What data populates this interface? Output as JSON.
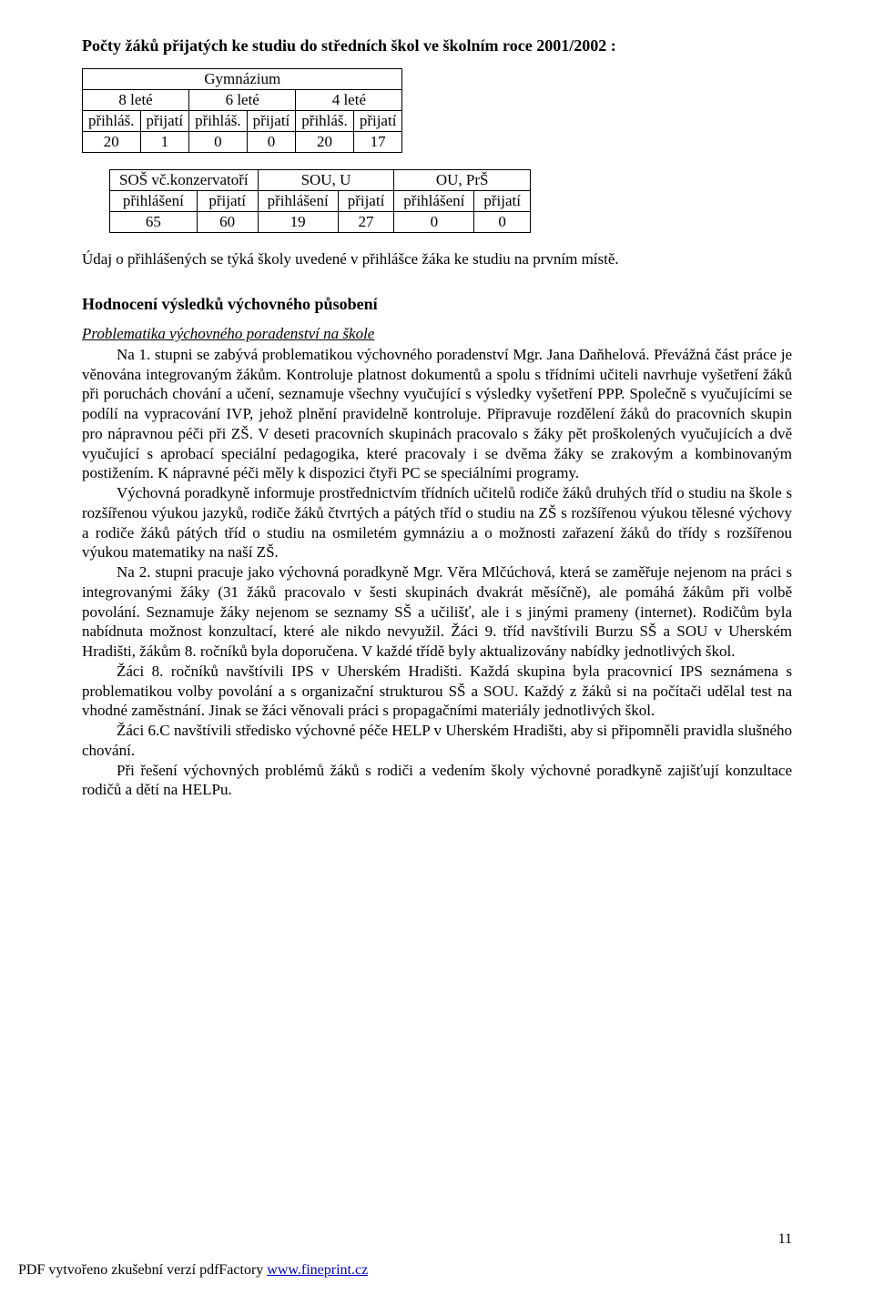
{
  "heading": "Počty žáků přijatých ke studiu do středních škol ve školním roce 2001/2002 :",
  "table1": {
    "topHeader": "Gymnázium",
    "groupHeaders": [
      "8 leté",
      "6 leté",
      "4 leté"
    ],
    "subHeaders": [
      "přihláš.",
      "přijatí",
      "přihláš.",
      "přijatí",
      "přihláš.",
      "přijatí"
    ],
    "values": [
      "20",
      "1",
      "0",
      "0",
      "20",
      "17"
    ]
  },
  "table2": {
    "headers": [
      "SOŠ vč.konzervatoří",
      "SOU, U",
      "OU, PrŠ"
    ],
    "subHeaders": [
      "přihlášení",
      "přijatí",
      "přihlášení",
      "přijatí",
      "přihlášení",
      "přijatí"
    ],
    "values": [
      "65",
      "60",
      "19",
      "27",
      "0",
      "0"
    ]
  },
  "note": "Údaj o přihlášených se týká školy uvedené v přihlášce žáka ke studiu na prvním místě.",
  "sectionTitle": "Hodnocení  výsledků výchovného působení",
  "subheading": "Problematika výchovného poradenství na škole",
  "body": {
    "p1": "Na 1. stupni se zabývá problematikou výchovného poradenství Mgr. Jana Daňhelová. Převážná část práce je věnována integrovaným žákům. Kontroluje platnost dokumentů a spolu s třídními učiteli navrhuje vyšetření žáků při poruchách chování a učení, seznamuje všechny vyučující s výsledky vyšetření PPP. Společně s vyučujícími se podílí na vypracování IVP, jehož plnění pravidelně kontroluje. Připravuje rozdělení žáků do pracovních skupin pro nápravnou péči při ZŠ. V deseti pracovních skupinách pracovalo s žáky pět proškolených vyučujících a dvě vyučující s aprobací speciální pedagogika, které pracovaly i se dvěma žáky se zrakovým a kombinovaným postižením. K nápravné péči měly k dispozici čtyři PC se speciálními programy.",
    "p2": "Výchovná poradkyně informuje prostřednictvím třídních učitelů rodiče žáků druhých tříd o studiu na škole s rozšířenou výukou jazyků, rodiče žáků čtvrtých a pátých tříd o studiu na ZŠ s rozšířenou výukou tělesné výchovy a rodiče žáků pátých tříd o studiu na osmiletém gymnáziu a o možnosti zařazení žáků do třídy s rozšířenou výukou matematiky na naší ZŠ.",
    "p3": "Na 2. stupni pracuje jako výchovná poradkyně Mgr. Věra Mlčúchová, která se zaměřuje nejenom na práci s integrovanými žáky (31 žáků pracovalo v šesti skupinách dvakrát měsíčně), ale pomáhá žákům při volbě povolání. Seznamuje žáky  nejenom se seznamy SŠ a učilišť, ale i s jinými prameny (internet).  Rodičům byla nabídnuta možnost konzultací, které ale nikdo nevyužil. Žáci 9. tříd navštívili Burzu SŠ a SOU v Uherském Hradišti, žákům 8. ročníků byla doporučena. V každé třídě byly aktualizovány nabídky jednotlivých škol.",
    "p4": "Žáci 8. ročníků navštívili  IPS v Uherském Hradišti. Každá skupina byla pracovnicí IPS seznámena s problematikou volby povolání a s organizační strukturou SŠ a SOU. Každý z žáků si na počítači udělal test na vhodné zaměstnání. Jinak se žáci věnovali práci s propagačními materiály jednotlivých škol.",
    "p5": "Žáci 6.C navštívili středisko výchovné péče HELP v Uherském Hradišti, aby si připomněli pravidla slušného chování.",
    "p6": "Při řešení výchovných problémů žáků s rodiči a vedením školy výchovné poradkyně zajišťují konzultace rodičů a dětí na  HELPu."
  },
  "pageNumber": "11",
  "footer": {
    "text": "PDF vytvořeno zkušební verzí pdfFactory ",
    "linkText": "www.fineprint.cz"
  }
}
